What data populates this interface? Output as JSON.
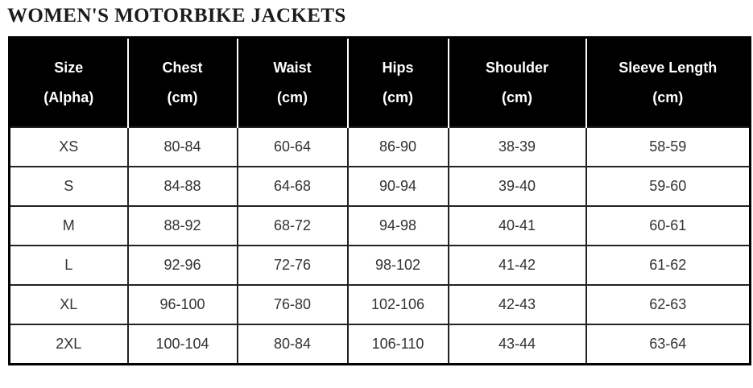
{
  "title": "WOMEN'S MOTORBIKE JACKETS",
  "chart_data": {
    "type": "table",
    "title": "WOMEN'S MOTORBIKE JACKETS",
    "columns": [
      {
        "label": "Size",
        "sub": "(Alpha)"
      },
      {
        "label": "Chest",
        "sub": "(cm)"
      },
      {
        "label": "Waist",
        "sub": "(cm)"
      },
      {
        "label": "Hips",
        "sub": "(cm)"
      },
      {
        "label": "Shoulder",
        "sub": "(cm)"
      },
      {
        "label": "Sleeve Length",
        "sub": "(cm)"
      }
    ],
    "rows": [
      [
        "XS",
        "80-84",
        "60-64",
        "86-90",
        "38-39",
        "58-59"
      ],
      [
        "S",
        "84-88",
        "64-68",
        "90-94",
        "39-40",
        "59-60"
      ],
      [
        "M",
        "88-92",
        "68-72",
        "94-98",
        "40-41",
        "60-61"
      ],
      [
        "L",
        "92-96",
        "72-76",
        "98-102",
        "41-42",
        "61-62"
      ],
      [
        "XL",
        "96-100",
        "76-80",
        "102-106",
        "42-43",
        "62-63"
      ],
      [
        "2XL",
        "100-104",
        "80-84",
        "106-110",
        "43-44",
        "63-64"
      ]
    ]
  },
  "colors": {
    "header_bg": "#000000",
    "header_text": "#ffffff",
    "body_text": "#333333",
    "border": "#222222",
    "outer_border": "#000000",
    "title_text": "#1b1b1b",
    "page_bg": "#ffffff"
  }
}
